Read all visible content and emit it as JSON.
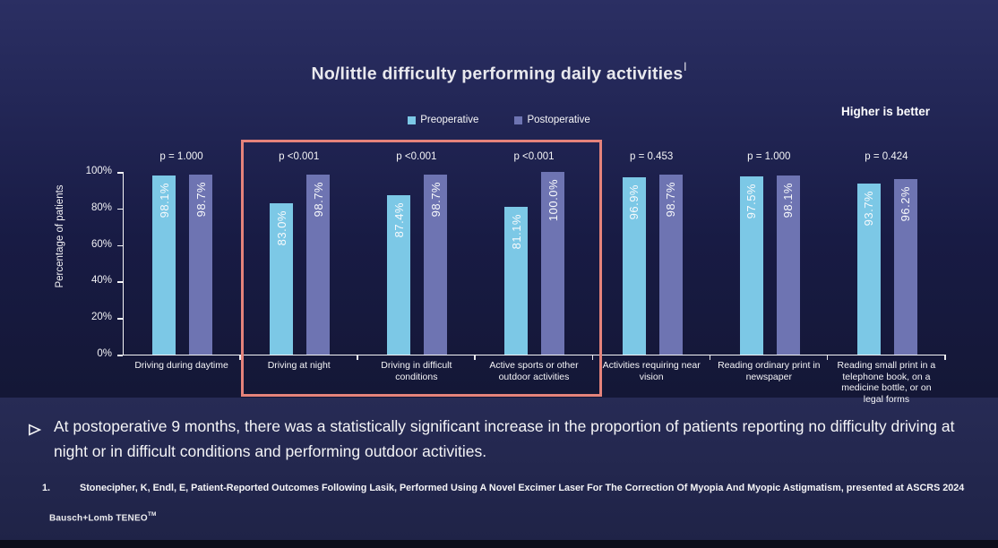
{
  "title": {
    "text": "No/little difficulty performing daily activities",
    "superscript": "l"
  },
  "notes": {
    "higher_is_better": "Higher is better"
  },
  "chart_data": {
    "type": "bar",
    "title": "No/little difficulty performing daily activities",
    "xlabel": "",
    "ylabel": "Percentage of patients",
    "ylim": [
      0,
      100
    ],
    "yticks": [
      "0%",
      "20%",
      "40%",
      "60%",
      "80%",
      "100%"
    ],
    "grid": false,
    "legend_position": "top-center",
    "categories": [
      "Driving during daytime",
      "Driving at night",
      "Driving in difficult conditions",
      "Active sports or other outdoor activities",
      "Activities requiring near vision",
      "Reading ordinary print in newspaper",
      "Reading small print in a telephone book, on a medicine bottle, or on legal forms"
    ],
    "p_values": [
      "p = 1.000",
      "p <0.001",
      "p <0.001",
      "p <0.001",
      "p = 0.453",
      "p = 1.000",
      "p = 0.424"
    ],
    "series": [
      {
        "name": "Preoperative",
        "color": "#7CC8E6",
        "values": [
          98.1,
          83.0,
          87.4,
          81.1,
          96.9,
          97.5,
          93.7
        ],
        "labels": [
          "98.1%",
          "83.0%",
          "87.4%",
          "81.1%",
          "96.9%",
          "97.5%",
          "93.7%"
        ]
      },
      {
        "name": "Postoperative",
        "color": "#6E74B2",
        "values": [
          98.7,
          98.7,
          98.7,
          100.0,
          98.7,
          98.1,
          96.2
        ],
        "labels": [
          "98.7%",
          "98.7%",
          "98.7%",
          "100.0%",
          "98.7%",
          "98.1%",
          "96.2%"
        ]
      }
    ],
    "highlight": {
      "color": "#E5837B",
      "categories": [
        "Driving at night",
        "Driving in difficult conditions",
        "Active sports or other outdoor activities"
      ]
    }
  },
  "bullet": {
    "text": "At postoperative 9 months, there was a statistically significant increase in the proportion of patients reporting no difficulty driving at night or in difficult conditions and performing outdoor activities."
  },
  "footnote": {
    "number": "1.",
    "text": "Stonecipher, K, Endl, E, Patient-Reported Outcomes Following Lasik, Performed Using A Novel Excimer Laser For The Correction Of Myopia And Myopic Astigmatism, presented at ASCRS 2024"
  },
  "brand": {
    "text": "Bausch+Lomb TENEO",
    "tm": "TM"
  }
}
